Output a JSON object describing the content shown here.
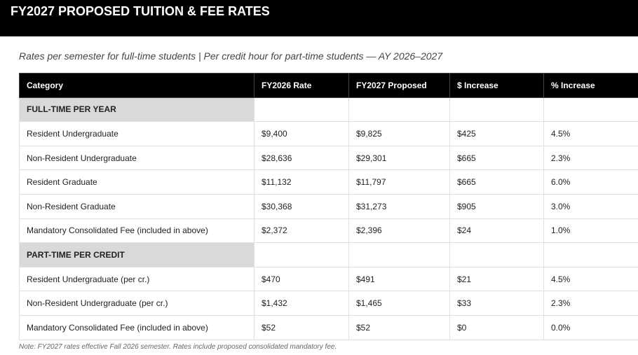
{
  "header": {
    "title": "FY2027 PROPOSED TUITION & FEE RATES"
  },
  "subtitle": "Rates per semester for full-time students | Per credit hour for part-time students — AY 2026–2027",
  "table": {
    "columns": [
      "Category",
      "FY2026 Rate",
      "FY2027 Proposed",
      "$ Increase",
      "% Increase"
    ],
    "rows": [
      [
        "FULL-TIME PER YEAR"
      ],
      [
        "Resident Undergraduate",
        "$9,400",
        "$9,825",
        "$425",
        "4.5%"
      ],
      [
        "Non-Resident Undergraduate",
        "$28,636",
        "$29,301",
        "$665",
        "2.3%"
      ],
      [
        "Resident Graduate",
        "$11,132",
        "$11,797",
        "$665",
        "6.0%"
      ],
      [
        "Non-Resident Graduate",
        "$30,368",
        "$31,273",
        "$905",
        "3.0%"
      ],
      [
        "Mandatory Consolidated Fee (included in above)",
        "$2,372",
        "$2,396",
        "$24",
        "1.0%"
      ],
      [
        "PART-TIME PER CREDIT"
      ],
      [
        "Resident Undergraduate (per cr.)",
        "$470",
        "$491",
        "$21",
        "4.5%"
      ],
      [
        "Non-Resident Undergraduate (per cr.)",
        "$1,432",
        "$1,465",
        "$33",
        "2.3%"
      ],
      [
        "Mandatory Consolidated Fee (included in above)",
        "$52",
        "$52",
        "$0",
        "0.0%"
      ]
    ]
  },
  "note": "Note: FY2027 rates effective Fall 2026 semester. Rates include proposed consolidated mandatory fee."
}
